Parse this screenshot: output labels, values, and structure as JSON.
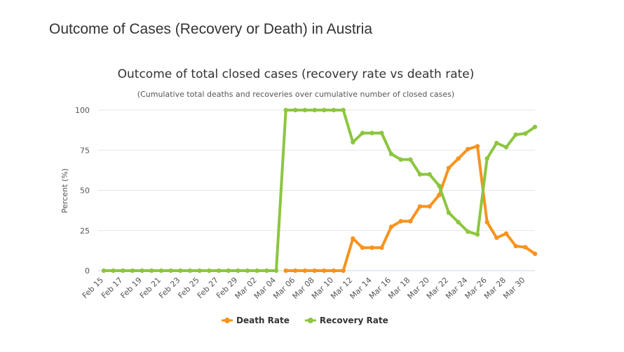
{
  "page": {
    "heading": "Outcome of Cases (Recovery or Death) in Austria"
  },
  "chart_data": {
    "type": "line",
    "title": "Outcome of total closed cases (recovery rate vs death rate)",
    "subtitle": "(Cumulative total deaths and recoveries over cumulative number of closed cases)",
    "ylabel": "Percent (%)",
    "xlabel": "",
    "ylim": [
      0,
      100
    ],
    "yticks": [
      0,
      25,
      50,
      75,
      100
    ],
    "grid": true,
    "legend_position": "bottom-center",
    "x": [
      "Feb 15",
      "Feb 16",
      "Feb 17",
      "Feb 18",
      "Feb 19",
      "Feb 20",
      "Feb 21",
      "Feb 22",
      "Feb 23",
      "Feb 24",
      "Feb 25",
      "Feb 26",
      "Feb 27",
      "Feb 28",
      "Feb 29",
      "Mar 01",
      "Mar 02",
      "Mar 03",
      "Mar 04",
      "Mar 05",
      "Mar 06",
      "Mar 07",
      "Mar 08",
      "Mar 09",
      "Mar 10",
      "Mar 11",
      "Mar 12",
      "Mar 13",
      "Mar 14",
      "Mar 15",
      "Mar 16",
      "Mar 17",
      "Mar 18",
      "Mar 19",
      "Mar 20",
      "Mar 21",
      "Mar 22",
      "Mar 23",
      "Mar 24",
      "Mar 25",
      "Mar 26",
      "Mar 27",
      "Mar 28",
      "Mar 29",
      "Mar 30",
      "Mar 31"
    ],
    "x_tick_labels": [
      "Feb 15",
      "Feb 17",
      "Feb 19",
      "Feb 21",
      "Feb 23",
      "Feb 25",
      "Feb 27",
      "Feb 29",
      "Mar 02",
      "Mar 04",
      "Mar 06",
      "Mar 08",
      "Mar 10",
      "Mar 12",
      "Mar 14",
      "Mar 16",
      "Mar 18",
      "Mar 20",
      "Mar 22",
      "Mar 24",
      "Mar 26",
      "Mar 28",
      "Mar 30"
    ],
    "series": [
      {
        "name": "Death Rate",
        "color": "#f7931e",
        "values": [
          null,
          null,
          null,
          null,
          null,
          null,
          null,
          null,
          null,
          null,
          null,
          null,
          null,
          null,
          null,
          null,
          null,
          null,
          null,
          0,
          0,
          0,
          0,
          0,
          0,
          0,
          20,
          14.3,
          14.3,
          14.3,
          27.3,
          30.8,
          30.8,
          40,
          40,
          47.1,
          63.9,
          69.8,
          75.7,
          77.5,
          30.2,
          20.5,
          23.1,
          15.3,
          14.6,
          10.5
        ]
      },
      {
        "name": "Recovery Rate",
        "color": "#8cc63f",
        "values": [
          0,
          0,
          0,
          0,
          0,
          0,
          0,
          0,
          0,
          0,
          0,
          0,
          0,
          0,
          0,
          0,
          0,
          0,
          0,
          100,
          100,
          100,
          100,
          100,
          100,
          100,
          80,
          85.7,
          85.7,
          85.7,
          72.7,
          69.2,
          69.2,
          60,
          60,
          52.9,
          36.1,
          30.2,
          24.3,
          22.5,
          69.8,
          79.5,
          76.9,
          84.7,
          85.4,
          89.5
        ]
      }
    ]
  }
}
